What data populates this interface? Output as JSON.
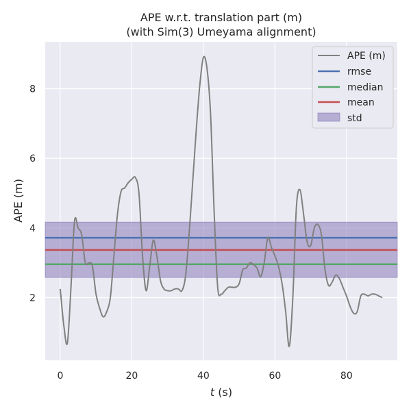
{
  "chart_data": {
    "type": "line",
    "title_line1": "APE w.r.t. translation part (m)",
    "title_line2": "(with Sim(3) Umeyama alignment)",
    "xlabel_var": "t",
    "xlabel_unit": " (s)",
    "ylabel": "APE (m)",
    "xlim": [
      -4.2,
      94.2
    ],
    "ylim": [
      0.2,
      9.35
    ],
    "xticks": [
      0,
      20,
      40,
      60,
      80
    ],
    "yticks": [
      2,
      4,
      6,
      8
    ],
    "grid": true,
    "legend_position": "top-right",
    "colors": {
      "background": "#eaeaf2",
      "grid": "#ffffff",
      "ape": "#808080",
      "rmse": "#4c72b0",
      "median": "#55a868",
      "mean": "#c44e52",
      "std_fill": "#8172b3"
    },
    "legend": {
      "ape": "APE (m)",
      "rmse": "rmse",
      "median": "median",
      "mean": "mean",
      "std": "std"
    },
    "stats": {
      "rmse": 3.72,
      "median": 2.96,
      "mean": 3.37,
      "std_low": 2.58,
      "std_high": 4.17
    },
    "series": [
      {
        "name": "APE (m)",
        "x": [
          0,
          1,
          2,
          3,
          4,
          5,
          6,
          7,
          8,
          9,
          10,
          11,
          12,
          13,
          14,
          15,
          16,
          17,
          18,
          19,
          20,
          21,
          22,
          23,
          24,
          25,
          26,
          27,
          28,
          29,
          30,
          31,
          32,
          33,
          34,
          35,
          36,
          37,
          38,
          39,
          40,
          41,
          42,
          43,
          44,
          45,
          46,
          47,
          48,
          49,
          50,
          51,
          52,
          53,
          54,
          55,
          56,
          57,
          58,
          59,
          60,
          61,
          62,
          63,
          64,
          65,
          66,
          67,
          68,
          69,
          70,
          71,
          72,
          73,
          74,
          75,
          76,
          77,
          78,
          79,
          80,
          81,
          82,
          83,
          84,
          85,
          86,
          87,
          88,
          89,
          90
        ],
        "y": [
          2.25,
          1.2,
          0.7,
          2.3,
          4.2,
          4.0,
          3.8,
          3.0,
          3.0,
          2.9,
          2.1,
          1.7,
          1.45,
          1.6,
          2.0,
          3.2,
          4.4,
          5.05,
          5.15,
          5.3,
          5.4,
          5.45,
          5.0,
          3.2,
          2.2,
          2.9,
          3.65,
          3.2,
          2.5,
          2.25,
          2.2,
          2.2,
          2.25,
          2.25,
          2.2,
          2.6,
          3.8,
          5.3,
          6.8,
          8.1,
          8.9,
          8.6,
          7.3,
          4.5,
          2.3,
          2.1,
          2.2,
          2.3,
          2.3,
          2.3,
          2.4,
          2.8,
          2.85,
          3.0,
          2.95,
          2.85,
          2.6,
          3.0,
          3.72,
          3.45,
          3.2,
          2.9,
          2.4,
          1.6,
          0.6,
          2.0,
          4.6,
          5.1,
          4.4,
          3.6,
          3.5,
          4.0,
          4.1,
          3.8,
          2.8,
          2.35,
          2.45,
          2.65,
          2.55,
          2.3,
          2.05,
          1.75,
          1.55,
          1.6,
          2.05,
          2.1,
          2.05,
          2.1,
          2.1,
          2.05,
          2.0
        ]
      }
    ]
  }
}
